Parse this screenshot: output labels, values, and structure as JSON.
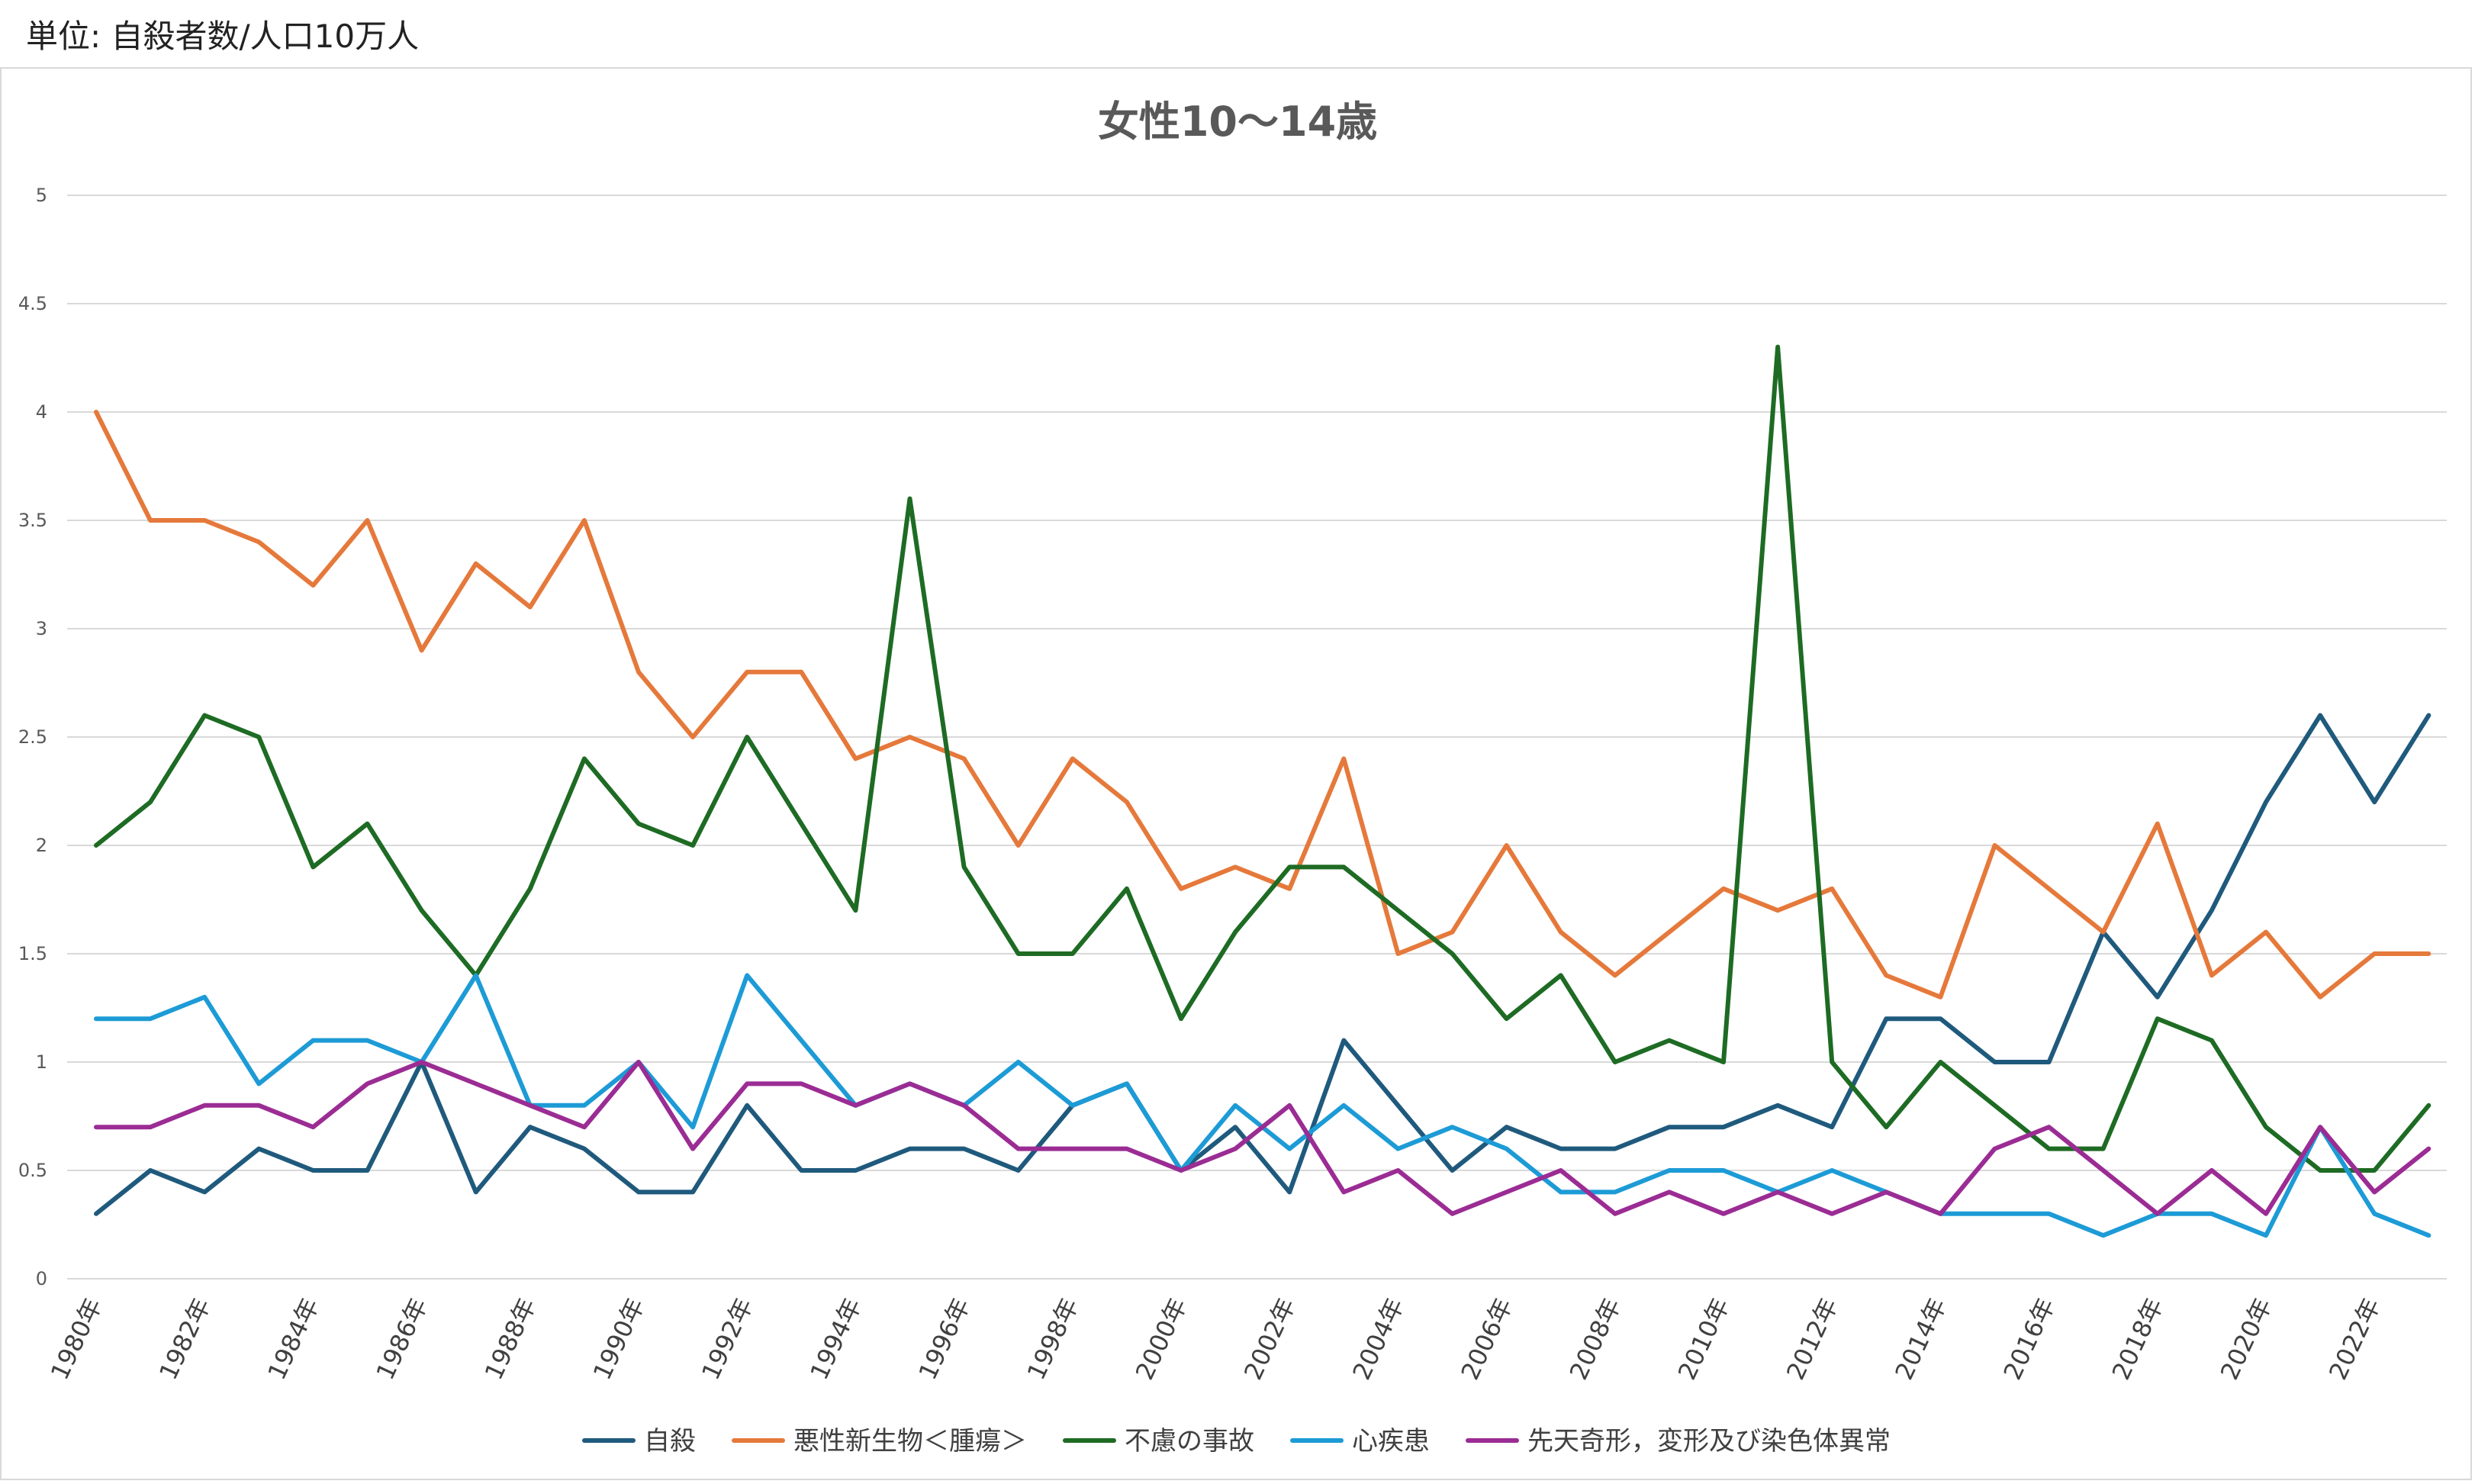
{
  "unit_label": "単位: 自殺者数/人口10万人",
  "chart_data": {
    "type": "line",
    "title": "女性10〜14歳",
    "xlabel": "",
    "ylabel": "",
    "ylim": [
      0,
      5
    ],
    "yticks": [
      "0",
      "0.5",
      "1",
      "1.5",
      "2",
      "2.5",
      "3",
      "3.5",
      "4",
      "4.5",
      "5"
    ],
    "grid": true,
    "legend_position": "bottom",
    "categories": [
      1980,
      1981,
      1982,
      1983,
      1984,
      1985,
      1986,
      1987,
      1988,
      1989,
      1990,
      1991,
      1992,
      1993,
      1994,
      1995,
      1996,
      1997,
      1998,
      1999,
      2000,
      2001,
      2002,
      2003,
      2004,
      2005,
      2006,
      2007,
      2008,
      2009,
      2010,
      2011,
      2012,
      2013,
      2014,
      2015,
      2016,
      2017,
      2018,
      2019,
      2020,
      2021,
      2022,
      2023
    ],
    "x_tick_labels": [
      "1980年",
      "1982年",
      "1984年",
      "1986年",
      "1988年",
      "1990年",
      "1992年",
      "1994年",
      "1996年",
      "1998年",
      "2000年",
      "2002年",
      "2004年",
      "2006年",
      "2008年",
      "2010年",
      "2012年",
      "2014年",
      "2016年",
      "2018年",
      "2020年",
      "2022年"
    ],
    "series": [
      {
        "name": "自殺",
        "color": "#1f5a7d",
        "values": [
          0.3,
          0.5,
          0.4,
          0.6,
          0.5,
          0.5,
          1.0,
          0.4,
          0.7,
          0.6,
          0.4,
          0.4,
          0.8,
          0.5,
          0.5,
          0.6,
          0.6,
          0.5,
          0.8,
          0.9,
          0.5,
          0.7,
          0.4,
          1.1,
          0.8,
          0.5,
          0.7,
          0.6,
          0.6,
          0.7,
          0.7,
          0.8,
          0.7,
          1.2,
          1.2,
          1.0,
          1.0,
          1.6,
          1.3,
          1.7,
          2.2,
          2.6,
          2.2,
          2.6
        ]
      },
      {
        "name": "悪性新生物＜腫瘍＞",
        "color": "#e5793b",
        "values": [
          4.0,
          3.5,
          3.5,
          3.4,
          3.2,
          3.5,
          2.9,
          3.3,
          3.1,
          3.5,
          2.8,
          2.5,
          2.8,
          2.8,
          2.4,
          2.5,
          2.4,
          2.0,
          2.4,
          2.2,
          1.8,
          1.9,
          1.8,
          2.4,
          1.5,
          1.6,
          2.0,
          1.6,
          1.4,
          1.6,
          1.8,
          1.7,
          1.8,
          1.4,
          1.3,
          2.0,
          1.8,
          1.6,
          2.1,
          1.4,
          1.6,
          1.3,
          1.5,
          1.5
        ]
      },
      {
        "name": "不慮の事故",
        "color": "#1e6b24",
        "values": [
          2.0,
          2.2,
          2.6,
          2.5,
          1.9,
          2.1,
          1.7,
          1.4,
          1.8,
          2.4,
          2.1,
          2.0,
          2.5,
          2.1,
          1.7,
          3.6,
          1.9,
          1.5,
          1.5,
          1.8,
          1.2,
          1.6,
          1.9,
          1.9,
          1.7,
          1.5,
          1.2,
          1.4,
          1.0,
          1.1,
          1.0,
          4.3,
          1.0,
          0.7,
          1.0,
          0.8,
          0.6,
          0.6,
          1.2,
          1.1,
          0.7,
          0.5,
          0.5,
          0.8
        ]
      },
      {
        "name": "心疾患",
        "color": "#1d9bd6",
        "values": [
          1.2,
          1.2,
          1.3,
          0.9,
          1.1,
          1.1,
          1.0,
          1.4,
          0.8,
          0.8,
          1.0,
          0.7,
          1.4,
          1.1,
          0.8,
          0.9,
          0.8,
          1.0,
          0.8,
          0.9,
          0.5,
          0.8,
          0.6,
          0.8,
          0.6,
          0.7,
          0.6,
          0.4,
          0.4,
          0.5,
          0.5,
          0.4,
          0.5,
          0.4,
          0.3,
          0.3,
          0.3,
          0.2,
          0.3,
          0.3,
          0.2,
          0.7,
          0.3,
          0.2
        ]
      },
      {
        "name": "先天奇形，変形及び染色体異常",
        "color": "#9b2c94",
        "values": [
          0.7,
          0.7,
          0.8,
          0.8,
          0.7,
          0.9,
          1.0,
          0.9,
          0.8,
          0.7,
          1.0,
          0.6,
          0.9,
          0.9,
          0.8,
          0.9,
          0.8,
          0.6,
          0.6,
          0.6,
          0.5,
          0.6,
          0.8,
          0.4,
          0.5,
          0.3,
          0.4,
          0.5,
          0.3,
          0.4,
          0.3,
          0.4,
          0.3,
          0.4,
          0.3,
          0.6,
          0.7,
          0.5,
          0.3,
          0.5,
          0.3,
          0.7,
          0.4,
          0.6
        ]
      }
    ]
  }
}
